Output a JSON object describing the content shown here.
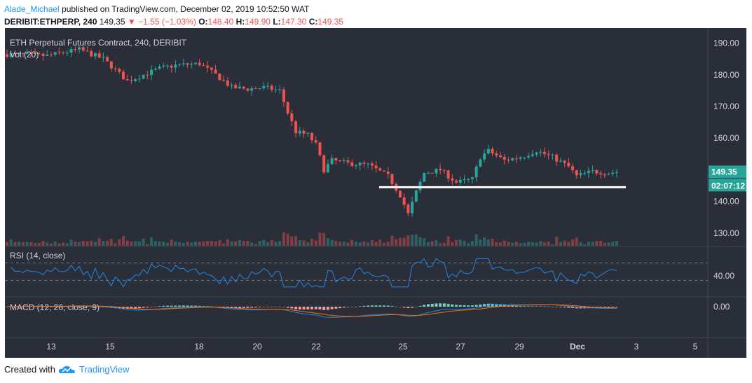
{
  "header": {
    "author": "Alade_Michael",
    "published_text": "published on TradingView.com, December 02, 2019 10:52:50 WAT",
    "symbol_line": "DERIBIT:ETHPERP, 240",
    "last": "149.35",
    "change_arrow": "▼",
    "change": "−1.55 (−1.03%)",
    "o_label": "O:",
    "o_value": "148.40",
    "h_label": "H:",
    "h_value": "149.90",
    "l_label": "L:",
    "l_value": "147.30",
    "c_label": "C:",
    "c_value": "149.35"
  },
  "colors": {
    "background": "#2a2e39",
    "up": "#26a69a",
    "down": "#ef5350",
    "rsi_line": "#1e88e5",
    "macd_line": "#1e88e5",
    "signal_line": "#ff6d00",
    "support_line": "#ffffff"
  },
  "chart_data": {
    "type": "candlestick",
    "title": "ETH Perpetual Futures Contract, 240, DERIBIT",
    "volume_label": "Vol (20)",
    "x_tick_labels": [
      "13",
      "15",
      "18",
      "20",
      "22",
      "25",
      "27",
      "29",
      "Dec",
      "3",
      "5"
    ],
    "price_axis": {
      "ticks": [
        "190.00",
        "180.00",
        "170.00",
        "160.00",
        "140.00",
        "130.00"
      ],
      "range": [
        126,
        193
      ]
    },
    "current_price_label": "149.35",
    "countdown_label": "02:07:12",
    "support_level": 144.5,
    "close_path_anchors": [
      [
        0,
        186.5
      ],
      [
        10,
        186
      ],
      [
        18,
        188
      ],
      [
        24,
        185
      ],
      [
        30,
        178
      ],
      [
        34,
        180
      ],
      [
        38,
        182
      ],
      [
        42,
        183
      ],
      [
        48,
        183.5
      ],
      [
        52,
        180
      ],
      [
        56,
        176
      ],
      [
        60,
        175.5
      ],
      [
        64,
        176
      ],
      [
        68,
        175
      ],
      [
        70,
        168
      ],
      [
        72,
        162
      ],
      [
        75,
        161
      ],
      [
        77,
        158
      ],
      [
        79,
        150
      ],
      [
        81,
        153
      ],
      [
        85,
        152
      ],
      [
        90,
        151.5
      ],
      [
        95,
        148
      ],
      [
        98,
        142
      ],
      [
        100,
        136
      ],
      [
        102,
        143
      ],
      [
        104,
        149
      ],
      [
        108,
        150
      ],
      [
        112,
        146
      ],
      [
        116,
        147
      ],
      [
        118,
        154
      ],
      [
        120,
        156
      ],
      [
        124,
        153
      ],
      [
        128,
        154
      ],
      [
        132,
        156
      ],
      [
        136,
        154
      ],
      [
        140,
        151
      ],
      [
        142,
        148
      ],
      [
        146,
        149.5
      ],
      [
        150,
        149
      ],
      [
        152,
        149.35
      ]
    ],
    "rsi": {
      "label": "RSI (14, close)",
      "tick": "40.00"
    },
    "macd": {
      "label": "MACD (12, 26, close, 9)",
      "tick": "0.00"
    }
  },
  "footer": {
    "created_with": "Created with",
    "brand": "TradingView"
  }
}
